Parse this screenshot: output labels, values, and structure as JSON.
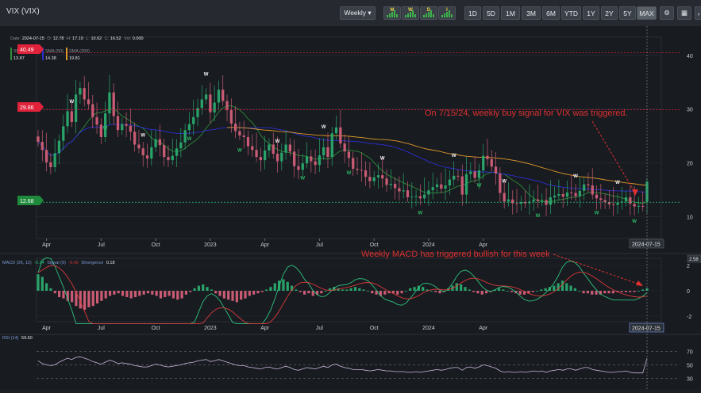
{
  "header": {
    "title": "VIX (VIX)",
    "interval": "Weekly ▾",
    "mini_charts": [
      "M",
      "W",
      "D",
      "I"
    ],
    "ranges": [
      "1D",
      "5D",
      "1M",
      "3M",
      "6M",
      "YTD",
      "1Y",
      "2Y",
      "5Y",
      "MAX"
    ],
    "selected_range": "MAX",
    "tool_icons": [
      "gear-icon",
      "calculator-icon",
      "more-icon"
    ]
  },
  "legend": {
    "ohlc": {
      "date_label": "Date:",
      "date": "2024-07-15",
      "o_label": "O:",
      "o": "12.78",
      "h_label": "H:",
      "h": "17.19",
      "l_label": "L:",
      "l": "10.62",
      "c_label": "C:",
      "c": "16.52",
      "v_label": "Vol:",
      "v": "0.000"
    },
    "ma_labels": [
      "SMA (10)",
      "SMA (50)",
      "SMA (200)"
    ],
    "ma_values": [
      "13.87",
      "14.38",
      "19.81"
    ],
    "ma_colors": [
      "#2e8b3a",
      "#2b2fd1",
      "#e0982a"
    ]
  },
  "price_labels": {
    "upper": "40.49",
    "mid": "29.86",
    "current": "12.68"
  },
  "annotations": {
    "main": "On 7/15/24, weekly buy signal for VIX was triggered.",
    "macd": "Weekly MACD has triggered bullish for this week"
  },
  "macd_legend": {
    "name": "MACD (26, 12)",
    "macd": "-0.24",
    "signal_label": "Signal (9)",
    "signal": "-0.42",
    "divergence_label": "Divergence",
    "divergence": "0.18"
  },
  "macd_axis": {
    "current": "2.58"
  },
  "rsi_legend": {
    "name": "RSI (14)",
    "value": "59.60"
  },
  "date_badge": "2024-07-15",
  "colors": {
    "up": "#29a36a",
    "down": "#c95c74",
    "macd_line": "#2ec27e",
    "signal_line": "#d83a3a",
    "rsi_line": "#c7b6d9",
    "annotation": "#e03030",
    "upper_label": "#e0233a",
    "current_label": "#1f8a3b"
  },
  "chart_data": [
    {
      "type": "candlestick",
      "frequency": "weekly",
      "date_range": [
        "2022-03",
        "2024-07-15"
      ],
      "y_ticks": [
        10,
        20,
        30,
        40
      ],
      "x_ticks": [
        "Apr",
        "Jul",
        "Oct",
        "2023",
        "Apr",
        "Jul",
        "Oct",
        "2024",
        "Apr",
        "2024-07-15"
      ],
      "ylim": [
        6,
        43
      ],
      "horizontal_lines": [
        40.49,
        29.86,
        12.68
      ],
      "ohlc_last": {
        "open": 12.78,
        "high": 17.19,
        "low": 10.62,
        "close": 16.52
      },
      "close": [
        23.9,
        22.4,
        20.1,
        19.2,
        21.8,
        24.1,
        26.8,
        29.6,
        27.6,
        32.7,
        33.9,
        31.8,
        30.9,
        28.5,
        27.1,
        24.8,
        29.2,
        33.1,
        28.7,
        26.1,
        27.2,
        26.9,
        25.8,
        23.4,
        22.7,
        21.4,
        20.8,
        22.9,
        24.4,
        23.3,
        21.1,
        20.5,
        21.3,
        22.7,
        23.8,
        26.1,
        27.2,
        28.5,
        30.2,
        31.8,
        32.7,
        29.4,
        31.2,
        33.6,
        31.5,
        29.8,
        27.3,
        25.9,
        25.1,
        24.8,
        23.1,
        22.4,
        21.1,
        20.5,
        22.3,
        23.4,
        21.7,
        20.3,
        21.9,
        23.4,
        22.1,
        19.4,
        18.7,
        19.9,
        21.2,
        20.3,
        19.6,
        21.4,
        22.9,
        21.1,
        25.5,
        26.6,
        23.6,
        22.1,
        20.9,
        18.9,
        18.7,
        18.6,
        17.4,
        16.6,
        17.3,
        17.7,
        17.1,
        15.9,
        16.1,
        15.3,
        14.7,
        14.9,
        13.6,
        13.7,
        13.8,
        13.4,
        14.1,
        14.9,
        15.5,
        16.0,
        15.2,
        15.8,
        16.9,
        17.6,
        17.5,
        14.1,
        17.9,
        18.4,
        17.2,
        18.6,
        21.3,
        20.7,
        19.3,
        18.0,
        14.4,
        12.8,
        13.2,
        12.5,
        12.4,
        12.7,
        12.5,
        12.8,
        13.2,
        12.9,
        13.1,
        12.2,
        13.6,
        13.9,
        14.2,
        13.7,
        14.5,
        14.4,
        13.8,
        14.8,
        16.0,
        15.8,
        14.1,
        13.4,
        13.1,
        12.7,
        12.3,
        12.2,
        12.6,
        12.8,
        13.6,
        12.4,
        11.9,
        12.0,
        11.9,
        16.5
      ],
      "moving_averages": [
        {
          "name": "SMA (10)",
          "last": 13.87
        },
        {
          "name": "SMA (50)",
          "last": 14.38
        },
        {
          "name": "SMA (200)",
          "last": 19.81
        }
      ],
      "signal_markers": "W"
    },
    {
      "type": "bar",
      "subtype": "MACD histogram with MACD and signal lines",
      "y_ticks": [
        -2,
        0,
        2
      ],
      "last": {
        "macd": -0.24,
        "signal": -0.42,
        "divergence": 0.18
      },
      "histogram": [
        1.3,
        1.1,
        0.6,
        0.2,
        -0.2,
        -0.5,
        -0.6,
        -0.8,
        -0.9,
        -1.2,
        -1.4,
        -1.5,
        -1.3,
        -1.2,
        -1.0,
        -0.8,
        -0.6,
        -0.4,
        -0.3,
        -0.2,
        -0.4,
        -0.5,
        -0.6,
        -0.5,
        -0.4,
        -0.3,
        -0.2,
        -0.3,
        -0.4,
        -0.6,
        -0.5,
        -0.4,
        -0.6,
        -0.7,
        -0.6,
        -0.3,
        -0.1,
        0.2,
        0.4,
        0.5,
        0.3,
        0.1,
        -0.2,
        -0.4,
        -0.6,
        -0.7,
        -0.8,
        -0.9,
        -0.7,
        -0.6,
        -0.4,
        -0.3,
        -0.2,
        -0.1,
        0.1,
        0.3,
        0.6,
        0.8,
        0.9,
        0.7,
        0.4,
        0.1,
        -0.1,
        -0.3,
        -0.2,
        -0.4,
        -0.3,
        -0.2,
        0.0,
        0.2,
        0.3,
        0.2,
        0.1,
        0.1,
        0.2,
        0.3,
        0.2,
        0.1,
        0.0,
        -0.2,
        -0.3,
        -0.4,
        -0.3,
        -0.2,
        -0.2,
        -0.3,
        -0.2,
        0.0,
        0.2,
        0.3,
        0.4,
        0.3,
        0.1,
        0.0,
        -0.1,
        -0.2,
        -0.1,
        0.2,
        0.4,
        0.6,
        0.5,
        0.3,
        0.1,
        -0.1,
        -0.2,
        -0.3,
        -0.2,
        -0.1,
        0.1,
        0.2,
        0.1,
        0.0,
        -0.1,
        -0.2,
        -0.3,
        -0.3,
        -0.2,
        -0.1,
        0.0,
        0.1,
        0.2,
        0.3,
        0.4,
        0.6,
        0.8,
        0.6,
        0.4,
        0.2,
        0.0,
        -0.2,
        -0.2,
        -0.3,
        -0.3,
        -0.3,
        -0.2,
        -0.2,
        -0.2,
        -0.1,
        -0.1,
        -0.1,
        -0.1,
        -0.1,
        0.0,
        0.1,
        0.2
      ]
    },
    {
      "type": "line",
      "name": "RSI (14)",
      "y_ticks": [
        30,
        50,
        70
      ],
      "last": 59.6,
      "values": [
        56,
        52,
        50,
        49,
        50,
        54,
        57,
        60,
        58,
        61,
        62,
        60,
        58,
        55,
        53,
        51,
        54,
        57,
        55,
        52,
        53,
        52,
        51,
        49,
        48,
        47,
        47,
        49,
        51,
        50,
        48,
        47,
        48,
        49,
        50,
        52,
        53,
        54,
        56,
        57,
        58,
        55,
        56,
        58,
        56,
        54,
        52,
        50,
        49,
        49,
        47,
        46,
        45,
        44,
        46,
        47,
        45,
        44,
        46,
        48,
        46,
        43,
        42,
        44,
        46,
        45,
        44,
        46,
        48,
        46,
        50,
        51,
        48,
        46,
        45,
        43,
        43,
        43,
        42,
        41,
        42,
        43,
        42,
        41,
        41,
        40,
        40,
        40,
        39,
        39,
        40,
        39,
        40,
        41,
        42,
        43,
        42,
        43,
        45,
        46,
        46,
        42,
        46,
        47,
        45,
        47,
        50,
        49,
        47,
        45,
        41,
        39,
        40,
        39,
        39,
        40,
        39,
        40,
        41,
        40,
        41,
        39,
        41,
        42,
        43,
        42,
        44,
        44,
        42,
        44,
        46,
        46,
        43,
        42,
        41,
        40,
        39,
        39,
        40,
        40,
        41,
        39,
        38,
        38,
        38,
        59.6
      ]
    }
  ]
}
